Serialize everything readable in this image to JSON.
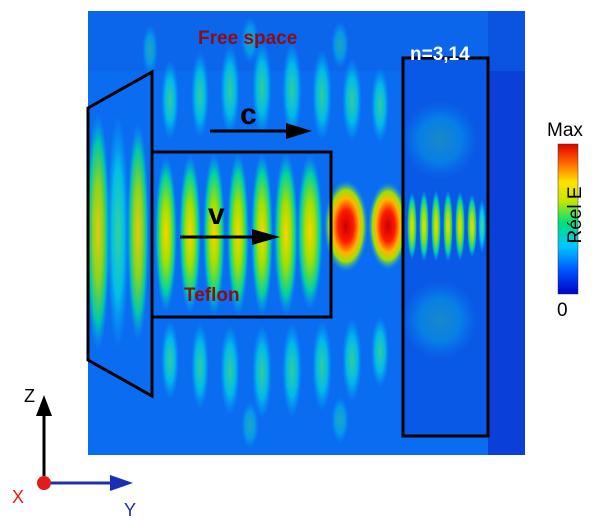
{
  "figure": {
    "labels": {
      "free_space": "Free space",
      "teflon": "Teflon",
      "refractive_index": "n=3,14",
      "c": "c",
      "v": "v"
    },
    "colorbar": {
      "max": "Max",
      "min": "0",
      "title": "Réel E",
      "colors": [
        "#0000c8",
        "#0050ff",
        "#00c8ff",
        "#00e07a",
        "#c8e600",
        "#ffe000",
        "#ff6000",
        "#e00000"
      ]
    },
    "axes": {
      "z": "Z",
      "x": "X",
      "y": "Y"
    },
    "colors": {
      "background_field": "#0a6cf0",
      "label_red": "#8b0e14",
      "axis_x": "#e31b1b",
      "axis_y": "#1b2fb5"
    }
  }
}
